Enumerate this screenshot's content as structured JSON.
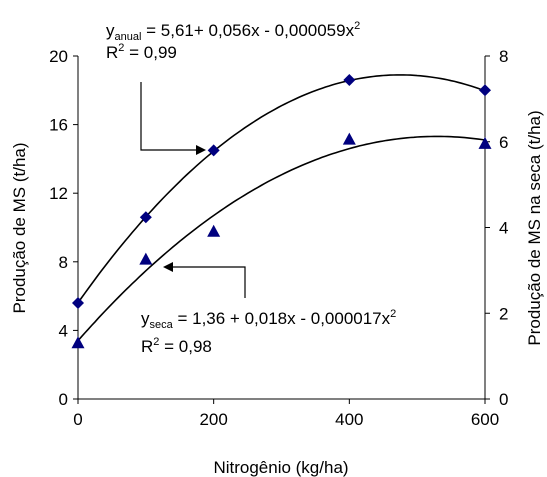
{
  "chart_data": {
    "type": "scatter",
    "xlabel": "Nitrogênio (kg/ha)",
    "ylabel_left": "Produção de MS (t/ha)",
    "ylabel_right": "Produção de MS na seca (t/ha)",
    "x_ticks": [
      "0",
      "200",
      "400",
      "600"
    ],
    "y_left_ticks": [
      "0",
      "4",
      "8",
      "12",
      "16",
      "20"
    ],
    "y_right_ticks": [
      "0",
      "2",
      "4",
      "6",
      "8"
    ],
    "xlim": [
      0,
      600
    ],
    "ylim_left": [
      0,
      20
    ],
    "ylim_right": [
      0,
      8
    ],
    "grid": false,
    "series": [
      {
        "axis": "left",
        "marker": "diamond",
        "color": "#00007f",
        "x": [
          0,
          100,
          200,
          400,
          600
        ],
        "y": [
          5.6,
          10.6,
          14.5,
          18.6,
          18.0
        ],
        "fit": {
          "a": 5.61,
          "b": 0.056,
          "c": -5.9e-05
        }
      },
      {
        "axis": "right",
        "marker": "triangle",
        "color": "#00007f",
        "x": [
          0,
          100,
          200,
          400,
          600
        ],
        "y": [
          1.3,
          3.25,
          3.9,
          6.05,
          5.95
        ],
        "fit": {
          "a": 1.36,
          "b": 0.018,
          "c": -1.7e-05
        }
      }
    ],
    "annotations": {
      "anual": {
        "y_label": "y",
        "sub": "anual",
        "eq_text": " = 5,61+ 0,056x - 0,000059x",
        "sup": "2",
        "r2_main": "R",
        "r2_sup": "2",
        "r2_value": " = 0,99"
      },
      "seca": {
        "y_label": "y",
        "sub": "seca",
        "eq_text": " = 1,36 + 0,018x - 0,000017x",
        "sup": "2",
        "r2_main": "R",
        "r2_sup": "2",
        "r2_value": " = 0,98"
      }
    }
  }
}
